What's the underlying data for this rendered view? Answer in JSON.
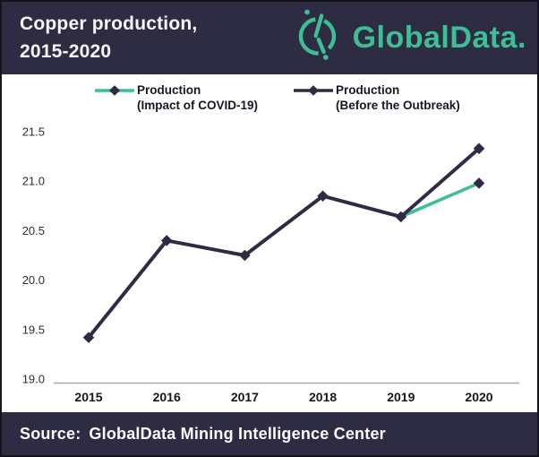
{
  "header": {
    "title_line1": "Copper production,",
    "title_line2": "2015-2020",
    "logo_text": "GlobalData."
  },
  "legend": {
    "items": [
      {
        "label_line1": "Production",
        "label_line2": "(Impact of COVID-19)",
        "color": "#3dbe94"
      },
      {
        "label_line1": "Production",
        "label_line2": "(Before the Outbreak)",
        "color": "#2e2b45"
      }
    ]
  },
  "chart_data": {
    "type": "line",
    "title": "Copper production, 2015-2020",
    "x": [
      2015,
      2016,
      2017,
      2018,
      2019,
      2020
    ],
    "series": [
      {
        "name": "Production (Before the Outbreak)",
        "color": "#2e2b45",
        "values": [
          19.42,
          20.4,
          20.25,
          20.85,
          20.64,
          21.33
        ]
      },
      {
        "name": "Production (Impact of COVID-19)",
        "color": "#3dbe94",
        "values": [
          null,
          null,
          null,
          null,
          20.64,
          20.98
        ]
      }
    ],
    "ylim": [
      19.0,
      21.5
    ],
    "yticks": [
      19.0,
      19.5,
      20.0,
      20.5,
      21.0,
      21.5
    ],
    "grid": false,
    "legend_position": "top",
    "marker": "diamond",
    "marker_color": "#2e2b45",
    "axis_line_color": "#a9a9a9",
    "ytick_label_color": "#2e2e2e",
    "xtick_label_color": "#161616"
  },
  "footer": {
    "source_label": "Source:",
    "source_text": "GlobalData Mining Intelligence Center"
  },
  "colors": {
    "header_bg": "#2e2c42",
    "brand_teal": "#3dbe94",
    "line_navy": "#2e2b45",
    "page_bg": "#ffffff"
  }
}
